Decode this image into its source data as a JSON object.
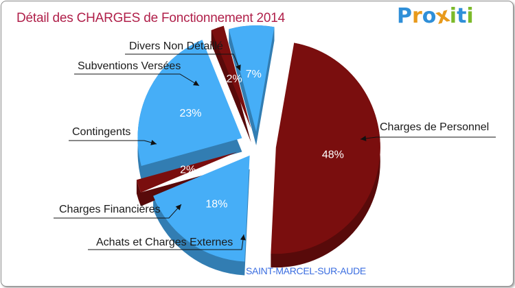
{
  "header": {
    "title": "Détail des CHARGES de Fonctionnement 2014",
    "logo": {
      "text": "Proxiti",
      "letters": [
        {
          "char": "P",
          "color": "#2f8fd8"
        },
        {
          "char": "r",
          "color": "#e89a1c"
        },
        {
          "char": "o",
          "color": "#2f8fd8"
        },
        {
          "char": "x",
          "color": "#e89a1c"
        },
        {
          "char": "i",
          "color": "#7cba2a"
        },
        {
          "char": "t",
          "color": "#2f8fd8"
        },
        {
          "char": "i",
          "color": "#7cba2a"
        }
      ]
    }
  },
  "footer": {
    "location": "SAINT-MARCEL-SUR-AUDE"
  },
  "chart_data": {
    "type": "pie",
    "title": "Détail des CHARGES de Fonctionnement 2014",
    "style": "3d-exploded",
    "legend": "none",
    "slices": [
      {
        "label": "Charges de Personnel",
        "value": 48,
        "display": "48%",
        "color": "#7a0e0e"
      },
      {
        "label": "Achats et Charges Externes",
        "value": 18,
        "display": "18%",
        "color": "#46aef7"
      },
      {
        "label": "Charges Financières",
        "value": 2,
        "display": "2%",
        "color": "#7a0e0e"
      },
      {
        "label": "Contingents",
        "value": 23,
        "display": "23%",
        "color": "#46aef7"
      },
      {
        "label": "Subventions Versées",
        "value": 2,
        "display": "2%",
        "color": "#7a0e0e"
      },
      {
        "label": "Divers Non Détaillé",
        "value": 7,
        "display": "7%",
        "color": "#46aef7"
      }
    ]
  }
}
